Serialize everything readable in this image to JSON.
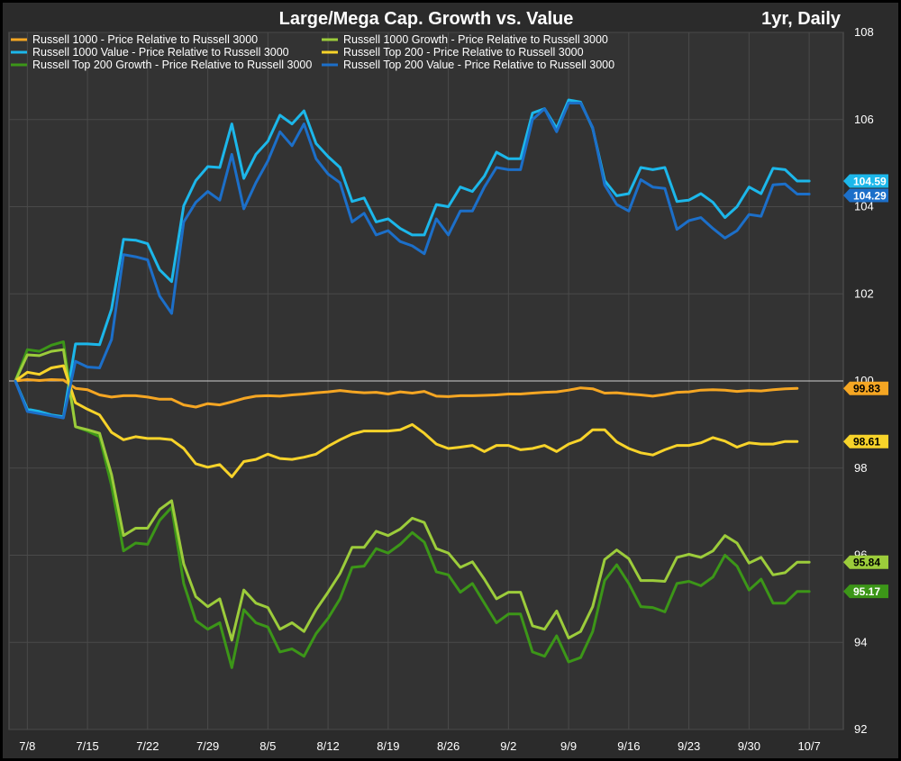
{
  "chart_data": {
    "type": "line",
    "title": "Large/Mega Cap. Growth vs. Value",
    "subtitle": "1yr, Daily",
    "ylim": [
      92,
      108
    ],
    "yticks": [
      92,
      94,
      96,
      98,
      100,
      102,
      104,
      106,
      108
    ],
    "xlim": [
      0,
      67
    ],
    "xticks": [
      {
        "x": 1,
        "label": "7/8"
      },
      {
        "x": 6,
        "label": "7/15"
      },
      {
        "x": 11,
        "label": "7/22"
      },
      {
        "x": 16,
        "label": "7/29"
      },
      {
        "x": 21,
        "label": "8/5"
      },
      {
        "x": 26,
        "label": "8/12"
      },
      {
        "x": 31,
        "label": "8/19"
      },
      {
        "x": 36,
        "label": "8/26"
      },
      {
        "x": 41,
        "label": "9/2"
      },
      {
        "x": 46,
        "label": "9/9"
      },
      {
        "x": 51,
        "label": "9/16"
      },
      {
        "x": 56,
        "label": "9/23"
      },
      {
        "x": 61,
        "label": "9/30"
      },
      {
        "x": 66,
        "label": "10/7"
      }
    ],
    "reference_line": 100,
    "grid": true,
    "legend_position": "top-left",
    "series": [
      {
        "name": "Russell 1000 - Price Relative to Russell 3000",
        "color": "#f5a623",
        "end_label": "99.83",
        "values": [
          100,
          100.03,
          100.01,
          100.03,
          100.02,
          99.83,
          99.8,
          99.68,
          99.63,
          99.66,
          99.66,
          99.63,
          99.58,
          99.58,
          99.45,
          99.4,
          99.48,
          99.45,
          99.52,
          99.6,
          99.65,
          99.66,
          99.65,
          99.68,
          99.7,
          99.73,
          99.75,
          99.78,
          99.75,
          99.73,
          99.74,
          99.7,
          99.75,
          99.72,
          99.76,
          99.65,
          99.64,
          99.66,
          99.66,
          99.67,
          99.68,
          99.7,
          99.7,
          99.72,
          99.74,
          99.75,
          99.79,
          99.84,
          99.82,
          99.72,
          99.73,
          99.7,
          99.68,
          99.65,
          99.69,
          99.74,
          99.75,
          99.79,
          99.8,
          99.79,
          99.76,
          99.78,
          99.77,
          99.8,
          99.82,
          99.83
        ]
      },
      {
        "name": "Russell 1000 Value - Price Relative to Russell 3000",
        "color": "#1cb7ea",
        "end_label": "104.59",
        "values": [
          100,
          99.35,
          99.3,
          99.22,
          99.18,
          100.85,
          100.85,
          100.83,
          101.65,
          103.25,
          103.23,
          103.15,
          102.55,
          102.28,
          104.02,
          104.6,
          104.92,
          104.9,
          105.9,
          104.65,
          105.2,
          105.5,
          106.1,
          105.9,
          106.2,
          105.45,
          105.15,
          104.9,
          104.12,
          104.2,
          103.65,
          103.72,
          103.5,
          103.35,
          103.35,
          104.05,
          104.0,
          104.45,
          104.35,
          104.7,
          105.25,
          105.1,
          105.1,
          106.15,
          106.25,
          105.8,
          106.45,
          106.4,
          105.8,
          104.6,
          104.25,
          104.3,
          104.9,
          104.85,
          104.9,
          104.12,
          104.15,
          104.3,
          104.1,
          103.75,
          104.0,
          104.45,
          104.3,
          104.88,
          104.85,
          104.59,
          104.59
        ]
      },
      {
        "name": "Russell Top 200 Growth - Price Relative to Russell 3000",
        "color": "#3c9618",
        "end_label": "95.17",
        "values": [
          100,
          100.72,
          100.68,
          100.82,
          100.9,
          98.95,
          98.85,
          98.72,
          97.6,
          96.1,
          96.28,
          96.25,
          96.8,
          97.1,
          95.35,
          94.5,
          94.3,
          94.45,
          93.42,
          94.75,
          94.45,
          94.35,
          93.78,
          93.85,
          93.68,
          94.2,
          94.55,
          95.0,
          95.72,
          95.75,
          96.15,
          96.05,
          96.25,
          96.52,
          96.3,
          95.62,
          95.55,
          95.15,
          95.35,
          94.9,
          94.45,
          94.65,
          94.65,
          93.78,
          93.68,
          94.15,
          93.55,
          93.65,
          94.25,
          95.42,
          95.78,
          95.35,
          94.82,
          94.8,
          94.7,
          95.35,
          95.4,
          95.3,
          95.5,
          96.0,
          95.75,
          95.2,
          95.45,
          94.9,
          94.9,
          95.17,
          95.17
        ]
      },
      {
        "name": "Russell 1000 Growth - Price Relative to Russell 3000",
        "color": "#9ccc3b",
        "end_label": "95.84",
        "values": [
          100,
          100.6,
          100.58,
          100.68,
          100.72,
          98.95,
          98.88,
          98.8,
          97.85,
          96.45,
          96.62,
          96.62,
          97.05,
          97.25,
          95.8,
          95.05,
          94.82,
          95.0,
          94.05,
          95.2,
          94.9,
          94.8,
          94.3,
          94.45,
          94.25,
          94.75,
          95.15,
          95.58,
          96.18,
          96.18,
          96.55,
          96.45,
          96.6,
          96.85,
          96.75,
          96.15,
          96.05,
          95.72,
          95.85,
          95.45,
          95.0,
          95.15,
          95.15,
          94.38,
          94.3,
          94.72,
          94.1,
          94.25,
          94.82,
          95.9,
          96.12,
          95.92,
          95.42,
          95.42,
          95.4,
          95.95,
          96.02,
          95.95,
          96.1,
          96.45,
          96.28,
          95.82,
          95.95,
          95.55,
          95.6,
          95.84,
          95.84
        ]
      },
      {
        "name": "Russell Top 200 - Price Relative to Russell 3000",
        "color": "#f7d32a",
        "end_label": "98.61",
        "values": [
          100,
          100.2,
          100.15,
          100.3,
          100.35,
          99.5,
          99.35,
          99.22,
          98.82,
          98.65,
          98.72,
          98.68,
          98.68,
          98.65,
          98.45,
          98.1,
          98.02,
          98.08,
          97.8,
          98.15,
          98.2,
          98.32,
          98.22,
          98.2,
          98.25,
          98.32,
          98.5,
          98.65,
          98.78,
          98.85,
          98.85,
          98.85,
          98.88,
          99.0,
          98.8,
          98.55,
          98.45,
          98.48,
          98.52,
          98.38,
          98.52,
          98.52,
          98.42,
          98.45,
          98.52,
          98.38,
          98.55,
          98.65,
          98.88,
          98.88,
          98.6,
          98.45,
          98.35,
          98.3,
          98.42,
          98.52,
          98.52,
          98.58,
          98.7,
          98.62,
          98.48,
          98.58,
          98.55,
          98.55,
          98.61,
          98.61
        ]
      },
      {
        "name": "Russell Top 200 Value - Price Relative to Russell 3000",
        "color": "#1c6fc9",
        "end_label": "104.29",
        "values": [
          100,
          99.3,
          99.25,
          99.2,
          99.15,
          100.45,
          100.32,
          100.3,
          100.95,
          102.9,
          102.85,
          102.78,
          101.95,
          101.55,
          103.65,
          104.1,
          104.35,
          104.15,
          105.2,
          103.95,
          104.55,
          105.05,
          105.72,
          105.4,
          105.9,
          105.1,
          104.75,
          104.55,
          103.65,
          103.85,
          103.35,
          103.45,
          103.2,
          103.1,
          102.92,
          103.72,
          103.35,
          103.9,
          103.9,
          104.45,
          104.9,
          104.85,
          104.85,
          106.0,
          106.25,
          105.72,
          106.38,
          106.38,
          105.82,
          104.5,
          104.05,
          103.9,
          104.62,
          104.45,
          104.42,
          103.48,
          103.68,
          103.75,
          103.5,
          103.28,
          103.45,
          103.82,
          103.78,
          104.5,
          104.52,
          104.29,
          104.29
        ]
      }
    ],
    "legend_order": [
      0,
      3,
      1,
      4,
      2,
      5
    ],
    "end_label_order": [
      1,
      5,
      0,
      4,
      3,
      2
    ]
  }
}
